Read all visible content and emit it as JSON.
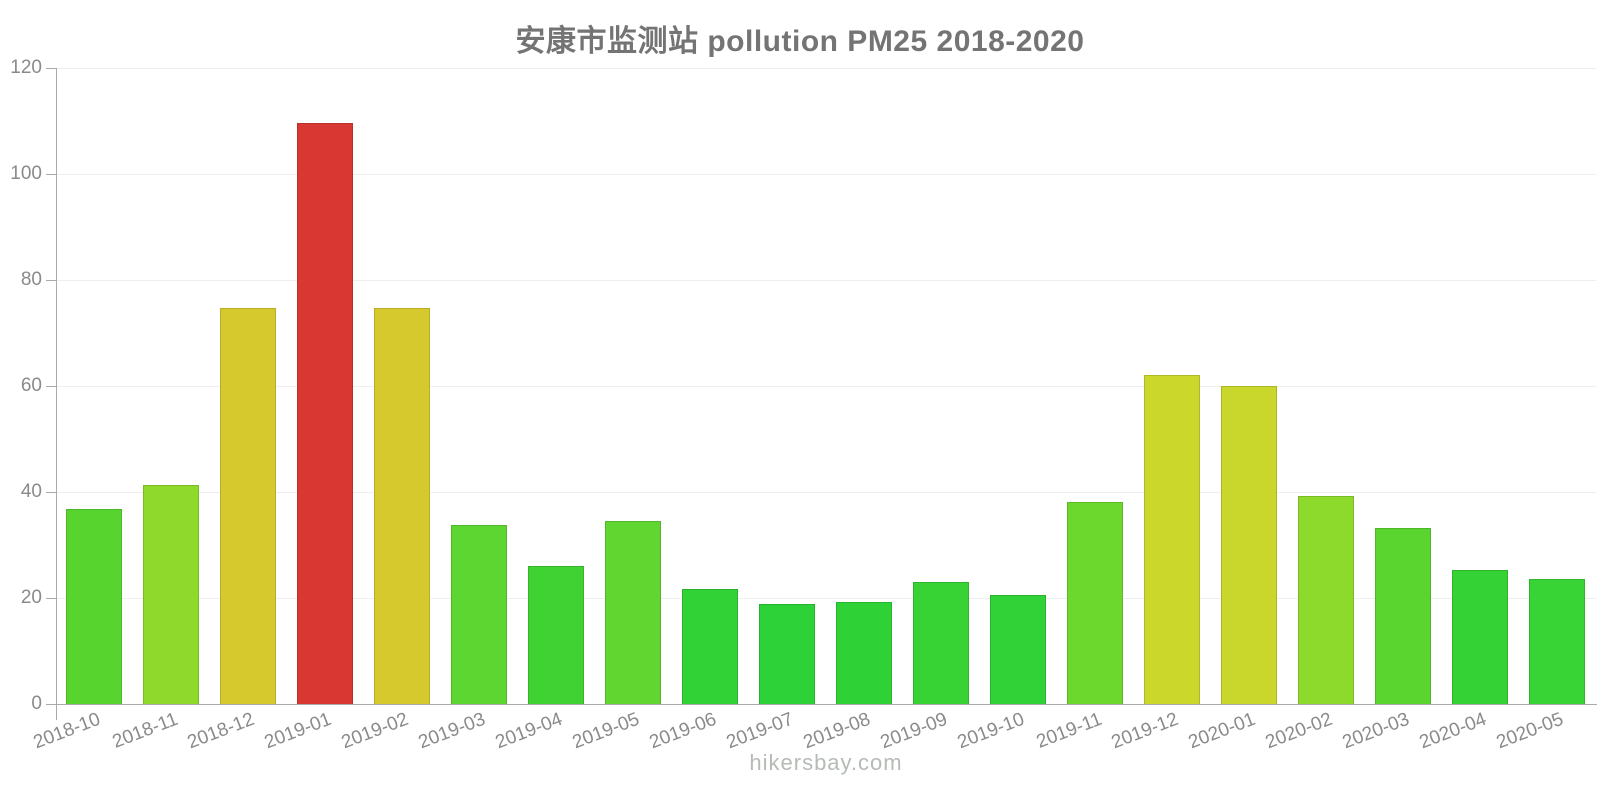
{
  "title": "安康市监测站 pollution PM25 2018-2020",
  "footer": "hikersbay.com",
  "chart_data": {
    "type": "bar",
    "title": "安康市监测站 pollution PM25 2018-2020",
    "xlabel": "",
    "ylabel": "",
    "legend": "none",
    "grid": "horizontal-light",
    "ylim": [
      0,
      120
    ],
    "yticks": [
      0,
      20,
      40,
      60,
      80,
      100,
      120
    ],
    "x_tick_rotation_deg": -21,
    "categories": [
      "2018-10",
      "2018-11",
      "2018-12",
      "2019-01",
      "2019-02",
      "2019-03",
      "2019-04",
      "2019-05",
      "2019-06",
      "2019-07",
      "2019-08",
      "2019-09",
      "2019-10",
      "2019-11",
      "2019-12",
      "2020-01",
      "2020-02",
      "2020-03",
      "2020-04",
      "2020-05"
    ],
    "values": [
      36.8,
      41.3,
      74.8,
      109.7,
      74.8,
      33.8,
      26.1,
      34.5,
      21.7,
      18.9,
      19.2,
      23.1,
      20.5,
      38.1,
      62.0,
      60.0,
      39.3,
      33.2,
      25.2,
      23.5
    ],
    "bar_colors": [
      "#58d42f",
      "#8ed92c",
      "#d5c92e",
      "#d93731",
      "#d5c92e",
      "#5ed631",
      "#40d233",
      "#62d630",
      "#31d236",
      "#2dd138",
      "#2ed237",
      "#37d334",
      "#30d237",
      "#6cd82e",
      "#ccd72b",
      "#c9d62c",
      "#8dd92c",
      "#5ad530",
      "#34d235",
      "#38d334"
    ]
  },
  "colors": {
    "background": "#ffffff",
    "title_text": "#747474",
    "axis_line": "#aaaaaa",
    "tick_label": "#8a8a8a",
    "gridline": "#efefef",
    "footer_text": "#b5bbb5",
    "scale_low_green": "#2ed237",
    "scale_mid_yellow": "#d5c92e",
    "scale_high_red": "#d93731"
  }
}
